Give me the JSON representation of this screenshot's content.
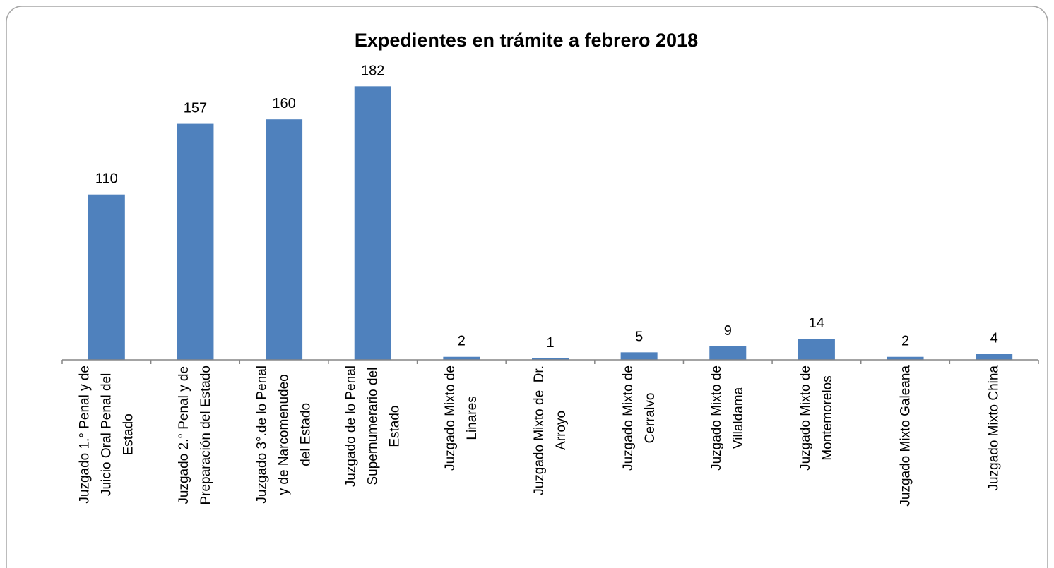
{
  "chart_data": {
    "type": "bar",
    "title": "Expedientes en trámite a febrero 2018",
    "categories": [
      "Juzgado 1.° Penal y de\nJuicio Oral Penal del\nEstado",
      "Juzgado 2.° Penal y de\nPreparación del Estado",
      "Juzgado 3°.de lo Penal\ny de Narcomenudeo\ndel Estado",
      "Juzgado de lo Penal\nSupernumerario del\nEstado",
      "Juzgado Mixto de\nLinares",
      "Juzgado Mixto de  Dr.\nArroyo",
      "Juzgado Mixto de\nCerralvo",
      "Juzgado Mixto de\nVillaldama",
      "Juzgado Mixto de\nMontemorelos",
      "Juzgado Mixto Galeana",
      "Juzgado Mixto China"
    ],
    "values": [
      110,
      157,
      160,
      182,
      2,
      1,
      5,
      9,
      14,
      2,
      4
    ],
    "color": "#4f81bd",
    "ylim": [
      0,
      200
    ]
  }
}
